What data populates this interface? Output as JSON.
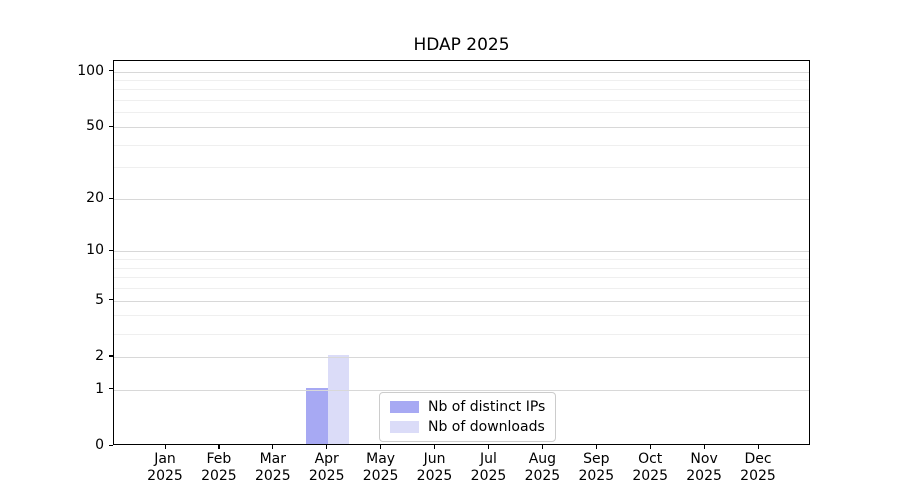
{
  "figure": {
    "background": "#ffffff"
  },
  "chart_data": {
    "type": "bar",
    "title": "HDAP 2025",
    "xlabel": "",
    "ylabel": "",
    "categories": [
      "Jan 2025",
      "Feb 2025",
      "Mar 2025",
      "Apr 2025",
      "May 2025",
      "Jun 2025",
      "Jul 2025",
      "Aug 2025",
      "Sep 2025",
      "Oct 2025",
      "Nov 2025",
      "Dec 2025"
    ],
    "series": [
      {
        "name": "Nb of distinct IPs",
        "color": "#a7a9f3",
        "values": [
          0,
          0,
          0,
          1,
          0,
          0,
          0,
          0,
          0,
          0,
          0,
          0
        ]
      },
      {
        "name": "Nb of downloads",
        "color": "#dbdcf8",
        "values": [
          0,
          0,
          0,
          2,
          0,
          0,
          0,
          0,
          0,
          0,
          0,
          0
        ]
      }
    ],
    "yscale": "log1p",
    "ylim": [
      0,
      114
    ],
    "y_tick_values": [
      0,
      1,
      2,
      5,
      10,
      20,
      50,
      100
    ],
    "y_tick_labels": [
      "0",
      "1",
      "2",
      "5",
      "10",
      "20",
      "50",
      "100"
    ],
    "y_minor_gridline_values": [
      3,
      4,
      6,
      7,
      8,
      9,
      30,
      40,
      60,
      70,
      80,
      90
    ],
    "grid": "horizontal, major and minor, drawn above bars",
    "legend_position": "inside lower center"
  },
  "colors": {
    "axis": "#000000",
    "text": "#000000",
    "major_grid": "#d8d8d8",
    "minor_grid": "#efefef",
    "legend_border": "#cccccc"
  }
}
